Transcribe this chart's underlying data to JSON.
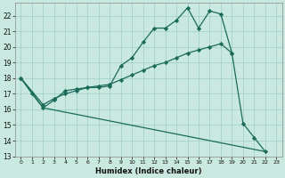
{
  "xlabel": "Humidex (Indice chaleur)",
  "background_color": "#c8e8e0",
  "grid_color": "#9ecec4",
  "line_color": "#1a6b5a",
  "xlim": [
    -0.5,
    23.5
  ],
  "ylim": [
    13,
    22.8
  ],
  "yticks": [
    13,
    14,
    15,
    16,
    17,
    18,
    19,
    20,
    21,
    22
  ],
  "xticks": [
    0,
    1,
    2,
    3,
    4,
    5,
    6,
    7,
    8,
    9,
    10,
    11,
    12,
    13,
    14,
    15,
    16,
    17,
    18,
    19,
    20,
    21,
    22,
    23
  ],
  "series1_x": [
    0,
    1,
    2,
    3,
    4,
    5,
    6,
    7,
    8,
    9,
    10,
    11,
    12,
    13,
    14,
    15,
    16,
    17,
    18,
    19,
    20,
    21,
    22
  ],
  "series1_y": [
    18.0,
    17.0,
    16.1,
    16.6,
    17.2,
    17.3,
    17.4,
    17.4,
    17.5,
    18.8,
    19.3,
    20.3,
    21.2,
    21.2,
    21.7,
    22.5,
    21.2,
    22.3,
    22.1,
    19.6,
    15.1,
    14.2,
    13.3
  ],
  "series2_x": [
    0,
    2,
    3,
    4,
    5,
    6,
    7,
    8,
    9,
    10,
    11,
    12,
    13,
    14,
    15,
    16,
    17,
    18,
    19
  ],
  "series2_y": [
    18.0,
    16.3,
    16.7,
    17.0,
    17.2,
    17.4,
    17.5,
    17.6,
    17.9,
    18.2,
    18.5,
    18.8,
    19.0,
    19.3,
    19.6,
    19.8,
    20.0,
    20.2,
    19.6
  ],
  "series3_x": [
    0,
    2,
    22
  ],
  "series3_y": [
    18.0,
    16.1,
    13.3
  ]
}
